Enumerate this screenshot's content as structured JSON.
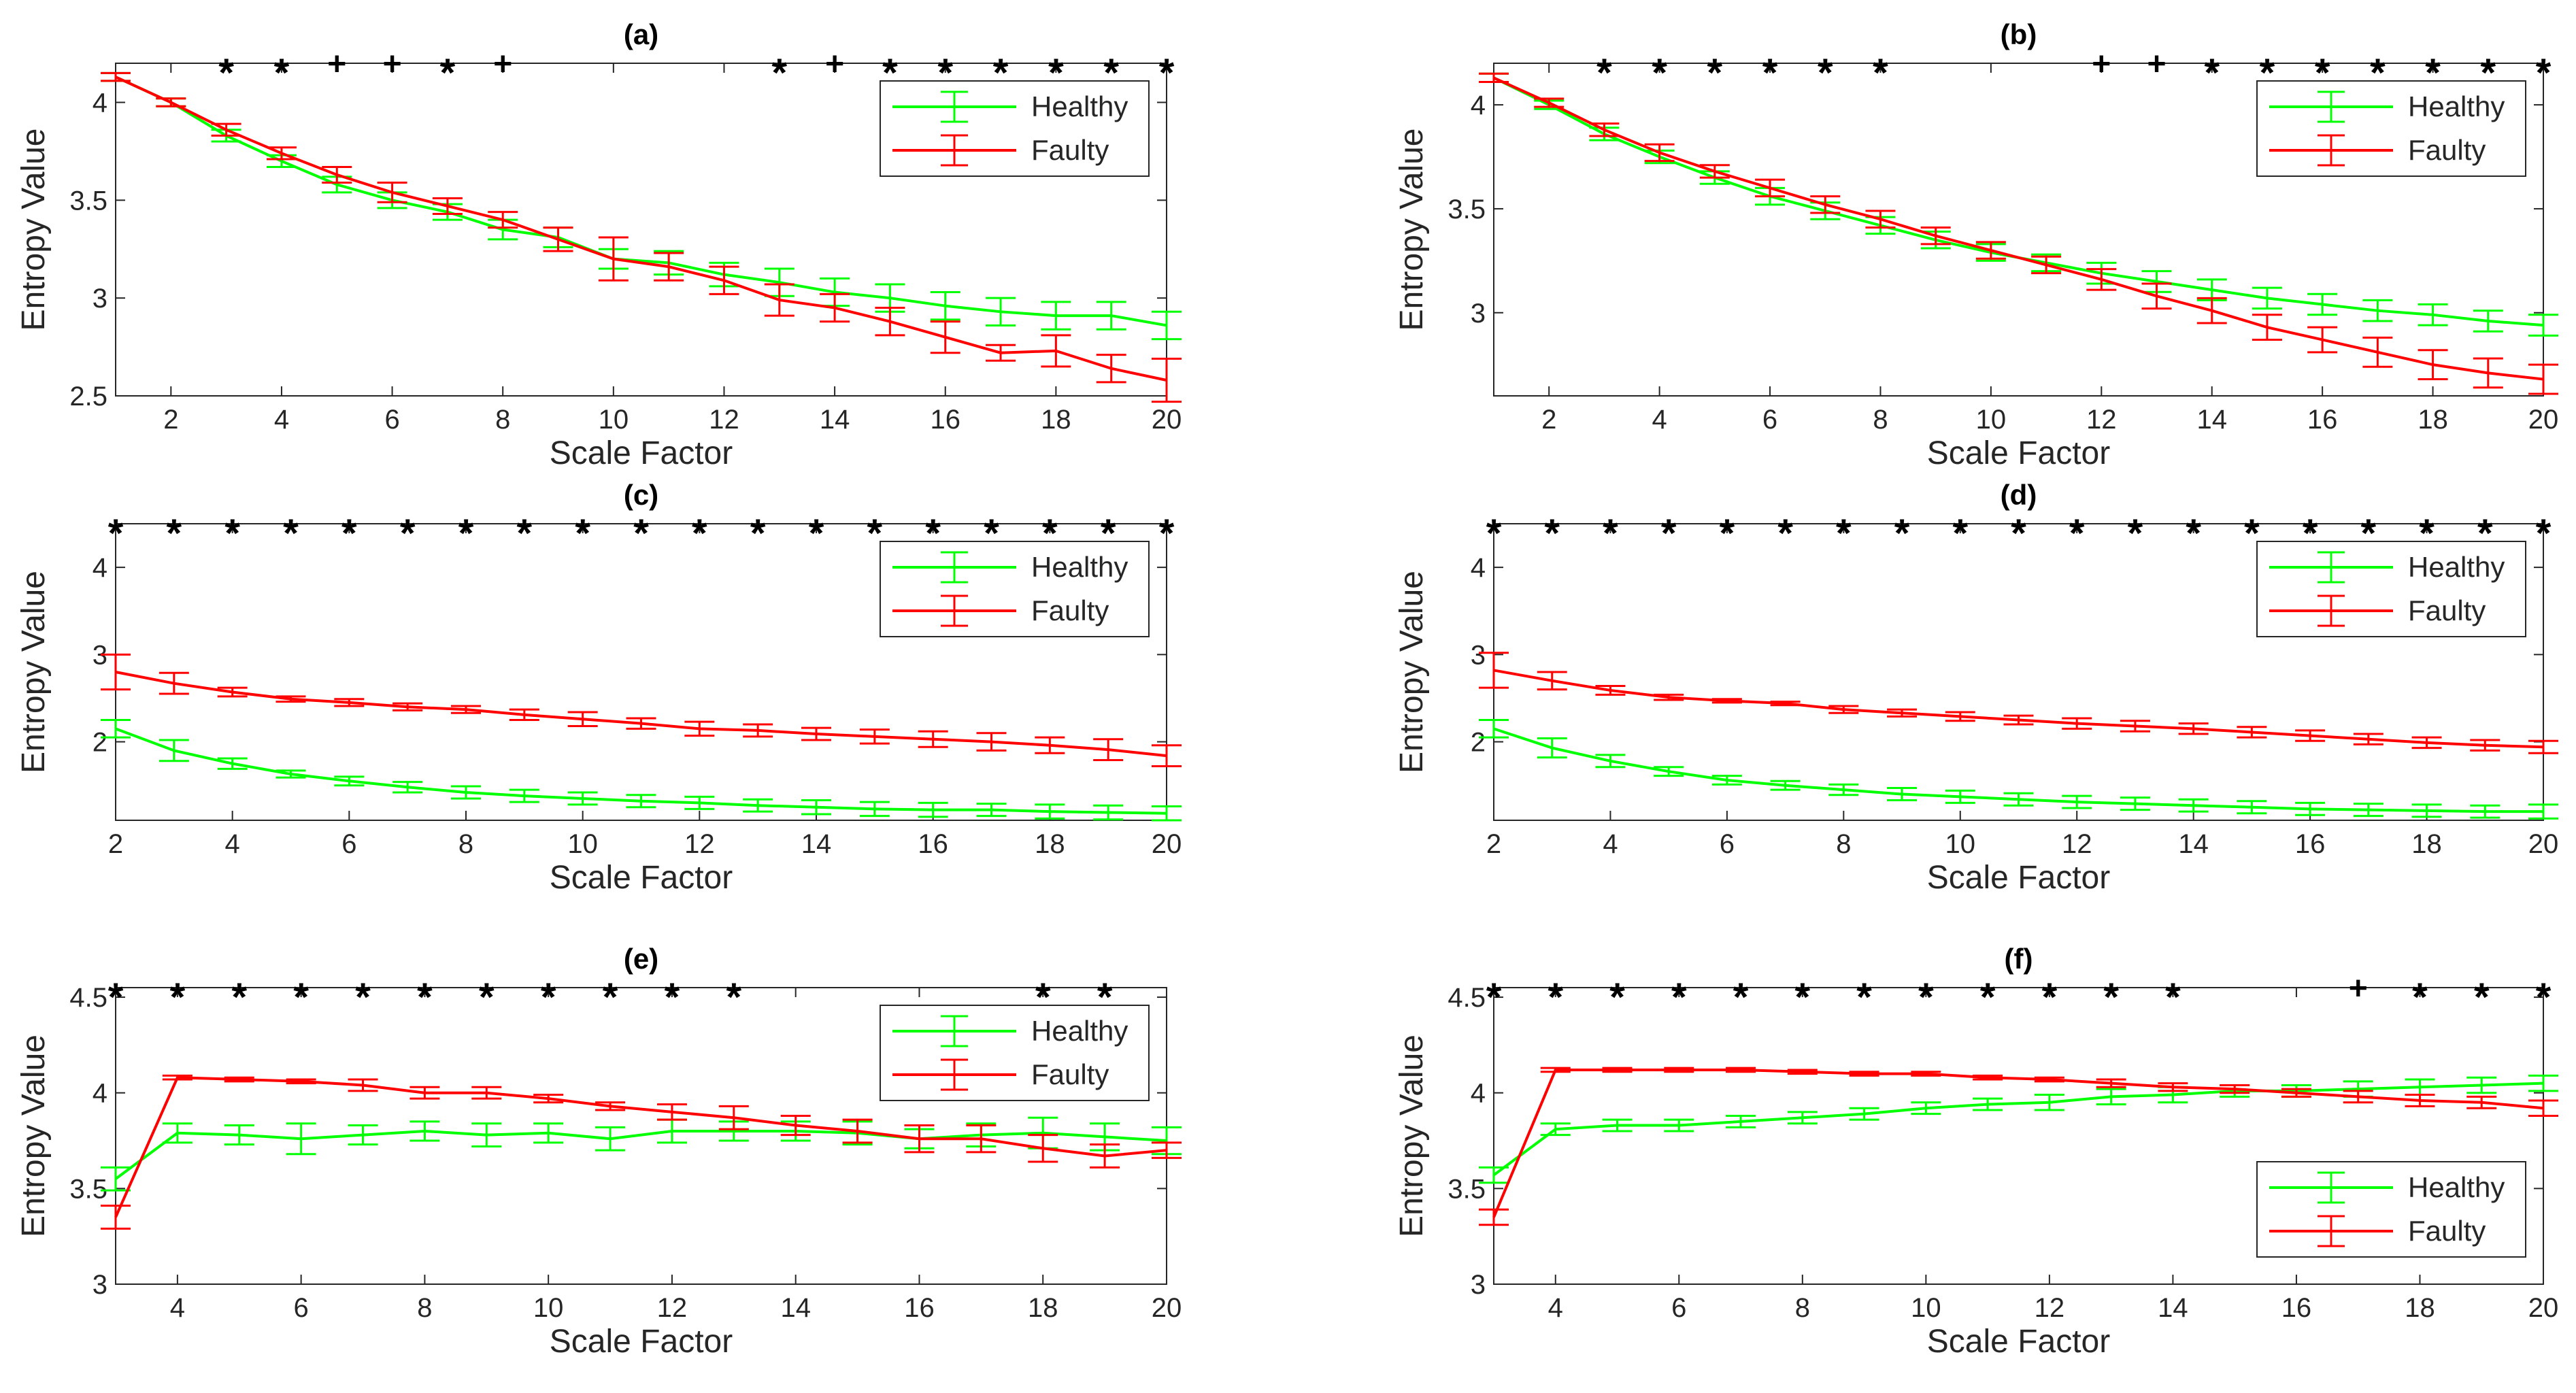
{
  "colors": {
    "healthy": "#00ff00",
    "faulty": "#ff0000",
    "axis": "#262626",
    "marker": "#000000"
  },
  "chart_data": [
    {
      "type": "line",
      "title": "(a)",
      "xlabel": "Scale Factor",
      "ylabel": "Entropy Value",
      "xlim": [
        1,
        20
      ],
      "ylim": [
        2.5,
        4.2
      ],
      "xticks": [
        2,
        4,
        6,
        8,
        10,
        12,
        14,
        16,
        18,
        20
      ],
      "yticks": [
        2.5,
        3,
        3.5,
        4
      ],
      "ytick_labels": [
        "2.5",
        "3",
        "3.5",
        "4"
      ],
      "x": [
        1,
        2,
        3,
        4,
        5,
        6,
        7,
        8,
        9,
        10,
        11,
        12,
        13,
        14,
        15,
        16,
        17,
        18,
        19,
        20
      ],
      "series": [
        {
          "name": "Healthy",
          "color": "#00ff00",
          "values": [
            4.13,
            4.0,
            3.83,
            3.7,
            3.58,
            3.5,
            3.44,
            3.35,
            3.31,
            3.2,
            3.18,
            3.12,
            3.08,
            3.03,
            3.0,
            2.96,
            2.93,
            2.91,
            2.91,
            2.86
          ],
          "err": [
            0.02,
            0.02,
            0.03,
            0.03,
            0.04,
            0.04,
            0.04,
            0.05,
            0.05,
            0.05,
            0.06,
            0.06,
            0.07,
            0.07,
            0.07,
            0.07,
            0.07,
            0.07,
            0.07,
            0.07
          ]
        },
        {
          "name": "Faulty",
          "color": "#ff0000",
          "values": [
            4.13,
            4.0,
            3.86,
            3.74,
            3.63,
            3.54,
            3.47,
            3.4,
            3.3,
            3.2,
            3.16,
            3.09,
            2.99,
            2.95,
            2.88,
            2.8,
            2.72,
            2.73,
            2.64,
            2.58
          ],
          "err": [
            0.02,
            0.02,
            0.03,
            0.03,
            0.04,
            0.05,
            0.04,
            0.04,
            0.06,
            0.11,
            0.07,
            0.07,
            0.08,
            0.07,
            0.07,
            0.08,
            0.04,
            0.08,
            0.07,
            0.11
          ]
        }
      ],
      "markers": [
        "",
        "",
        "*",
        "*",
        "+",
        "+",
        "*",
        "+",
        "",
        "",
        "",
        "",
        "*",
        "+",
        "*",
        "*",
        "*",
        "*",
        "*",
        "*"
      ],
      "legend": "top-right"
    },
    {
      "type": "line",
      "title": "(b)",
      "xlabel": "Scale Factor",
      "ylabel": "Entropy Value",
      "xlim": [
        1,
        20
      ],
      "ylim": [
        2.6,
        4.2
      ],
      "xticks": [
        2,
        4,
        6,
        8,
        10,
        12,
        14,
        16,
        18,
        20
      ],
      "yticks": [
        3,
        3.5,
        4
      ],
      "ytick_labels": [
        "3",
        "3.5",
        "4"
      ],
      "x": [
        1,
        2,
        3,
        4,
        5,
        6,
        7,
        8,
        9,
        10,
        11,
        12,
        13,
        14,
        15,
        16,
        17,
        18,
        19,
        20
      ],
      "series": [
        {
          "name": "Healthy",
          "color": "#00ff00",
          "values": [
            4.13,
            4.0,
            3.86,
            3.75,
            3.65,
            3.56,
            3.49,
            3.42,
            3.35,
            3.29,
            3.24,
            3.19,
            3.15,
            3.11,
            3.07,
            3.04,
            3.01,
            2.99,
            2.96,
            2.94
          ],
          "err": [
            0.02,
            0.02,
            0.03,
            0.03,
            0.03,
            0.04,
            0.04,
            0.04,
            0.04,
            0.04,
            0.04,
            0.05,
            0.05,
            0.05,
            0.05,
            0.05,
            0.05,
            0.05,
            0.05,
            0.05
          ]
        },
        {
          "name": "Faulty",
          "color": "#ff0000",
          "values": [
            4.13,
            4.01,
            3.88,
            3.77,
            3.68,
            3.6,
            3.52,
            3.45,
            3.37,
            3.3,
            3.23,
            3.16,
            3.08,
            3.01,
            2.93,
            2.87,
            2.81,
            2.75,
            2.71,
            2.68
          ],
          "err": [
            0.02,
            0.02,
            0.03,
            0.04,
            0.03,
            0.04,
            0.04,
            0.04,
            0.04,
            0.04,
            0.04,
            0.05,
            0.06,
            0.06,
            0.06,
            0.06,
            0.07,
            0.07,
            0.07,
            0.07
          ]
        }
      ],
      "markers": [
        "",
        "",
        "*",
        "*",
        "*",
        "*",
        "*",
        "*",
        "",
        "",
        "",
        "+",
        "+",
        "*",
        "*",
        "*",
        "*",
        "*",
        "*",
        "*"
      ],
      "legend": "top-right"
    },
    {
      "type": "line",
      "title": "(c)",
      "xlabel": "Scale Factor",
      "ylabel": "Entropy Value",
      "xlim": [
        2,
        20
      ],
      "ylim": [
        1.1,
        4.5
      ],
      "xticks": [
        2,
        4,
        6,
        8,
        10,
        12,
        14,
        16,
        18,
        20
      ],
      "yticks": [
        2,
        3,
        4
      ],
      "ytick_labels": [
        "2",
        "3",
        "4"
      ],
      "x": [
        2,
        3,
        4,
        5,
        6,
        7,
        8,
        9,
        10,
        11,
        12,
        13,
        14,
        15,
        16,
        17,
        18,
        19,
        20
      ],
      "series": [
        {
          "name": "Healthy",
          "color": "#00ff00",
          "values": [
            2.15,
            1.9,
            1.75,
            1.63,
            1.55,
            1.48,
            1.42,
            1.38,
            1.35,
            1.32,
            1.3,
            1.27,
            1.25,
            1.23,
            1.22,
            1.22,
            1.2,
            1.19,
            1.18
          ],
          "err": [
            0.1,
            0.12,
            0.06,
            0.04,
            0.05,
            0.06,
            0.07,
            0.07,
            0.07,
            0.07,
            0.07,
            0.07,
            0.08,
            0.08,
            0.08,
            0.07,
            0.08,
            0.08,
            0.08
          ]
        },
        {
          "name": "Faulty",
          "color": "#ff0000",
          "values": [
            2.8,
            2.67,
            2.57,
            2.49,
            2.45,
            2.4,
            2.37,
            2.31,
            2.26,
            2.21,
            2.15,
            2.13,
            2.09,
            2.06,
            2.03,
            2.0,
            1.96,
            1.91,
            1.84
          ],
          "err": [
            0.2,
            0.12,
            0.05,
            0.03,
            0.04,
            0.04,
            0.04,
            0.06,
            0.08,
            0.06,
            0.08,
            0.07,
            0.07,
            0.08,
            0.09,
            0.1,
            0.09,
            0.12,
            0.12
          ]
        }
      ],
      "markers": [
        "*",
        "*",
        "*",
        "*",
        "*",
        "*",
        "*",
        "*",
        "*",
        "*",
        "*",
        "*",
        "*",
        "*",
        "*",
        "*",
        "*",
        "*",
        "*"
      ],
      "legend": "top-right"
    },
    {
      "type": "line",
      "title": "(d)",
      "xlabel": "Scale Factor",
      "ylabel": "Entropy Value",
      "xlim": [
        2,
        20
      ],
      "ylim": [
        1.1,
        4.5
      ],
      "xticks": [
        2,
        4,
        6,
        8,
        10,
        12,
        14,
        16,
        18,
        20
      ],
      "yticks": [
        2,
        3,
        4
      ],
      "ytick_labels": [
        "2",
        "3",
        "4"
      ],
      "x": [
        2,
        3,
        4,
        5,
        6,
        7,
        8,
        9,
        10,
        11,
        12,
        13,
        14,
        15,
        16,
        17,
        18,
        19,
        20
      ],
      "series": [
        {
          "name": "Healthy",
          "color": "#00ff00",
          "values": [
            2.15,
            1.93,
            1.78,
            1.66,
            1.56,
            1.5,
            1.45,
            1.4,
            1.37,
            1.34,
            1.31,
            1.29,
            1.27,
            1.25,
            1.23,
            1.22,
            1.21,
            1.2,
            1.2
          ],
          "err": [
            0.1,
            0.11,
            0.07,
            0.05,
            0.05,
            0.05,
            0.06,
            0.07,
            0.07,
            0.07,
            0.07,
            0.07,
            0.07,
            0.07,
            0.07,
            0.07,
            0.07,
            0.07,
            0.08
          ]
        },
        {
          "name": "Faulty",
          "color": "#ff0000",
          "values": [
            2.82,
            2.7,
            2.59,
            2.51,
            2.47,
            2.44,
            2.37,
            2.33,
            2.29,
            2.25,
            2.21,
            2.18,
            2.15,
            2.11,
            2.07,
            2.03,
            1.99,
            1.96,
            1.94
          ],
          "err": [
            0.2,
            0.1,
            0.05,
            0.03,
            0.02,
            0.02,
            0.04,
            0.04,
            0.05,
            0.05,
            0.06,
            0.06,
            0.06,
            0.06,
            0.06,
            0.06,
            0.06,
            0.06,
            0.07
          ]
        }
      ],
      "markers": [
        "*",
        "*",
        "*",
        "*",
        "*",
        "*",
        "*",
        "*",
        "*",
        "*",
        "*",
        "*",
        "*",
        "*",
        "*",
        "*",
        "*",
        "*",
        "*"
      ],
      "legend": "top-right"
    },
    {
      "type": "line",
      "title": "(e)",
      "xlabel": "Scale Factor",
      "ylabel": "Entropy Value",
      "xlim": [
        3,
        20
      ],
      "ylim": [
        3,
        4.55
      ],
      "xticks": [
        4,
        6,
        8,
        10,
        12,
        14,
        16,
        18,
        20
      ],
      "yticks": [
        3,
        3.5,
        4,
        4.5
      ],
      "ytick_labels": [
        "3",
        "3.5",
        "4",
        "4.5"
      ],
      "x": [
        3,
        4,
        5,
        6,
        7,
        8,
        9,
        10,
        11,
        12,
        13,
        14,
        15,
        16,
        17,
        18,
        19,
        20
      ],
      "series": [
        {
          "name": "Healthy",
          "color": "#00ff00",
          "values": [
            3.55,
            3.79,
            3.78,
            3.76,
            3.78,
            3.8,
            3.78,
            3.79,
            3.76,
            3.8,
            3.8,
            3.8,
            3.79,
            3.76,
            3.78,
            3.79,
            3.77,
            3.75
          ],
          "err": [
            0.06,
            0.05,
            0.05,
            0.08,
            0.05,
            0.05,
            0.06,
            0.05,
            0.06,
            0.06,
            0.05,
            0.05,
            0.06,
            0.05,
            0.06,
            0.08,
            0.07,
            0.07
          ]
        },
        {
          "name": "Faulty",
          "color": "#ff0000",
          "values": [
            3.35,
            4.08,
            4.07,
            4.06,
            4.04,
            4.0,
            4.0,
            3.97,
            3.93,
            3.9,
            3.87,
            3.83,
            3.8,
            3.76,
            3.76,
            3.71,
            3.67,
            3.7
          ],
          "err": [
            0.06,
            0.01,
            0.01,
            0.01,
            0.03,
            0.03,
            0.03,
            0.02,
            0.02,
            0.04,
            0.06,
            0.05,
            0.06,
            0.07,
            0.07,
            0.07,
            0.06,
            0.04
          ]
        }
      ],
      "markers": [
        "*",
        "*",
        "*",
        "*",
        "*",
        "*",
        "*",
        "*",
        "*",
        "*",
        "*",
        "",
        "",
        "",
        "",
        "*",
        "*",
        ""
      ],
      "legend": "top-right"
    },
    {
      "type": "line",
      "title": "(f)",
      "xlabel": "Scale Factor",
      "ylabel": "Entropy Value",
      "xlim": [
        3,
        20
      ],
      "ylim": [
        3,
        4.55
      ],
      "xticks": [
        4,
        6,
        8,
        10,
        12,
        14,
        16,
        18,
        20
      ],
      "yticks": [
        3,
        3.5,
        4,
        4.5
      ],
      "ytick_labels": [
        "3",
        "3.5",
        "4",
        "4.5"
      ],
      "x": [
        3,
        4,
        5,
        6,
        7,
        8,
        9,
        10,
        11,
        12,
        13,
        14,
        15,
        16,
        17,
        18,
        19,
        20
      ],
      "series": [
        {
          "name": "Healthy",
          "color": "#00ff00",
          "values": [
            3.57,
            3.81,
            3.83,
            3.83,
            3.85,
            3.87,
            3.89,
            3.92,
            3.94,
            3.95,
            3.98,
            3.99,
            4.01,
            4.01,
            4.02,
            4.03,
            4.04,
            4.05
          ],
          "err": [
            0.04,
            0.03,
            0.03,
            0.03,
            0.03,
            0.03,
            0.03,
            0.03,
            0.03,
            0.04,
            0.04,
            0.04,
            0.03,
            0.03,
            0.04,
            0.04,
            0.04,
            0.04
          ]
        },
        {
          "name": "Faulty",
          "color": "#ff0000",
          "values": [
            3.35,
            4.12,
            4.12,
            4.12,
            4.12,
            4.11,
            4.1,
            4.1,
            4.08,
            4.07,
            4.05,
            4.03,
            4.02,
            4.0,
            3.98,
            3.96,
            3.95,
            3.92
          ],
          "err": [
            0.04,
            0.01,
            0.01,
            0.01,
            0.01,
            0.01,
            0.01,
            0.01,
            0.01,
            0.01,
            0.02,
            0.02,
            0.02,
            0.02,
            0.03,
            0.03,
            0.03,
            0.04
          ]
        }
      ],
      "markers": [
        "*",
        "*",
        "*",
        "*",
        "*",
        "*",
        "*",
        "*",
        "*",
        "*",
        "*",
        "*",
        "",
        "",
        "+",
        "*",
        "*",
        "*"
      ],
      "legend": "bottom-right"
    }
  ]
}
